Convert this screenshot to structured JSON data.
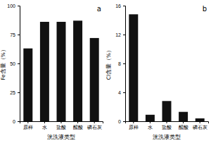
{
  "chart_data": [
    {
      "type": "bar",
      "title": "a",
      "categories": [
        "原样",
        "水",
        "盐酸",
        "醒酸",
        "磷石灰"
      ],
      "values": [
        63,
        86,
        86,
        87,
        72
      ],
      "color": "#111111",
      "xlabel": "洸洗液类型",
      "ylabel": "Fe含量（%）",
      "ylim": [
        0,
        100
      ],
      "yticks": [
        0,
        25,
        50,
        75,
        100
      ]
    },
    {
      "type": "bar",
      "title": "b",
      "categories": [
        "原样",
        "水",
        "盐酸",
        "醒酸",
        "磷石灰"
      ],
      "values": [
        14.8,
        0.9,
        2.8,
        1.3,
        0.4
      ],
      "color": "#111111",
      "xlabel": "洸洗液类型",
      "ylabel": "Cl含量（%）",
      "ylim": [
        0,
        16
      ],
      "yticks": [
        0,
        4,
        8,
        12,
        16
      ]
    }
  ]
}
